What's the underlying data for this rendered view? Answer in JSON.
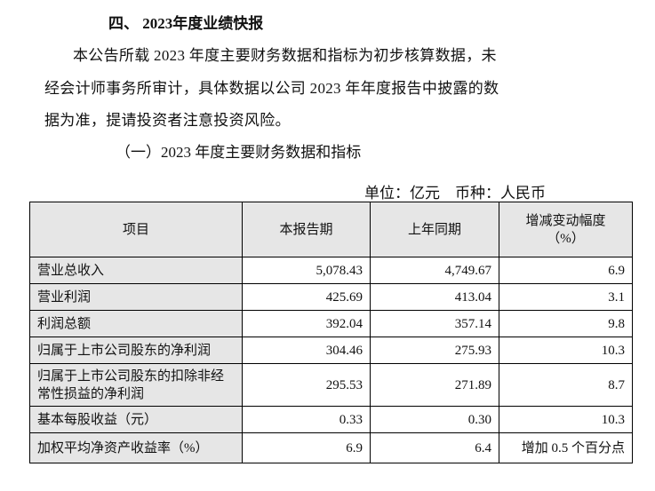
{
  "heading": "四、 2023年度业绩快报",
  "paragraph_lines": [
    "本公告所载 2023 年度主要财务数据和指标为初步核算数据，未",
    "经会计师事务所审计，具体数据以公司 2023 年年度报告中披露的数",
    "据为准，提请投资者注意投资风险。"
  ],
  "subheading": "（一）2023 年度主要财务数据和指标",
  "unit_note": "单位：亿元　币种：人民币",
  "table": {
    "headers": [
      "项目",
      "本报告期",
      "上年同期",
      "增减变动幅度（%）"
    ],
    "header_change_line1": "增减变动幅度",
    "header_change_line2": "（%）",
    "rows": [
      {
        "item": "营业总收入",
        "current": "5,078.43",
        "prior": "4,749.67",
        "change": "6.9"
      },
      {
        "item": "营业利润",
        "current": "425.69",
        "prior": "413.04",
        "change": "3.1"
      },
      {
        "item": "利润总额",
        "current": "392.04",
        "prior": "357.14",
        "change": "9.8"
      },
      {
        "item": "归属于上市公司股东的净利润",
        "current": "304.46",
        "prior": "275.93",
        "change": "10.3"
      },
      {
        "item": "归属于上市公司股东的扣除非经常性损益的净利润",
        "current": "295.53",
        "prior": "271.89",
        "change": "8.7"
      },
      {
        "item": "基本每股收益（元）",
        "current": "0.33",
        "prior": "0.30",
        "change": "10.3"
      },
      {
        "item": "加权平均净资产收益率（%）",
        "current": "6.9",
        "prior": "6.4",
        "change": "增加 0.5 个百分点"
      }
    ]
  }
}
